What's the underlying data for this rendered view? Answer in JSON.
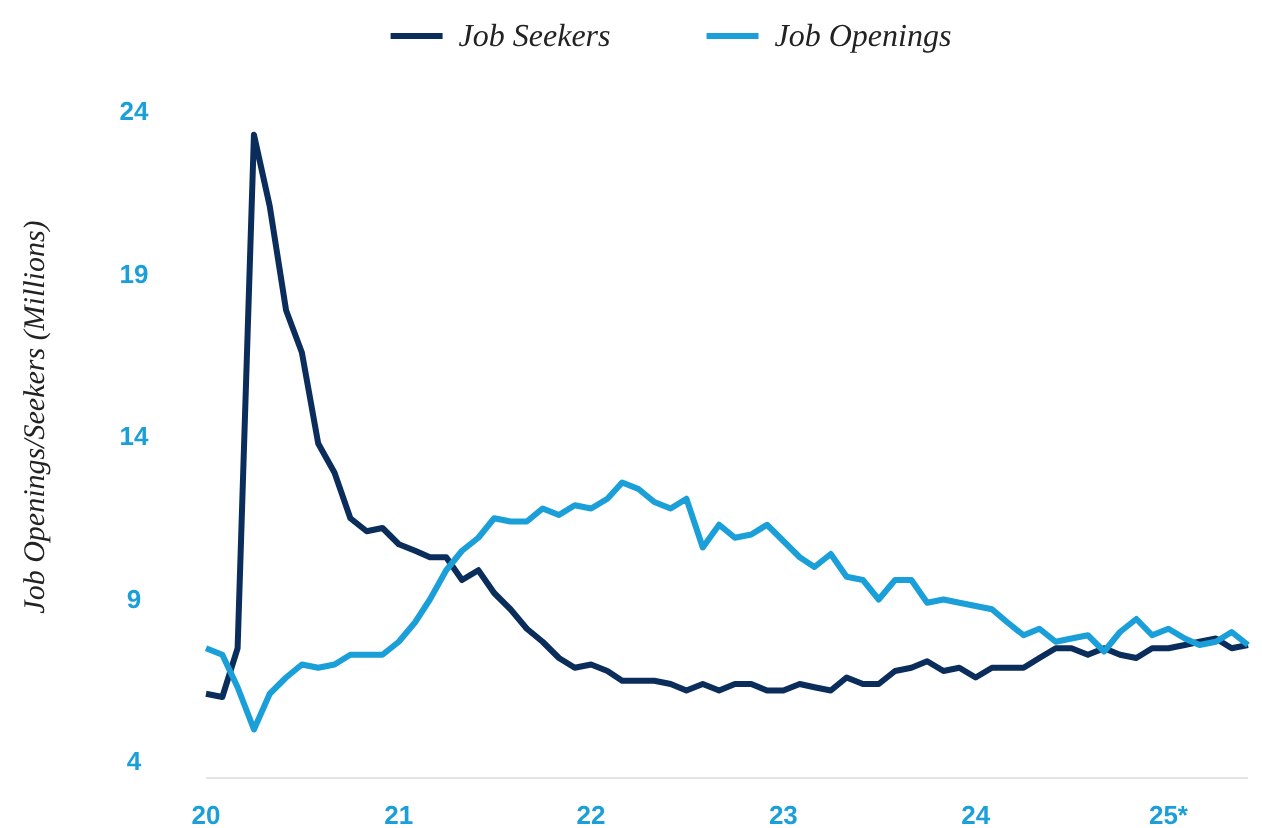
{
  "chart_data": {
    "type": "line",
    "ylabel": "Job Openings/Seekers (Millions)",
    "x": [
      "2020-01",
      "2020-02",
      "2020-03",
      "2020-04",
      "2020-05",
      "2020-06",
      "2020-07",
      "2020-08",
      "2020-09",
      "2020-10",
      "2020-11",
      "2020-12",
      "2021-01",
      "2021-02",
      "2021-03",
      "2021-04",
      "2021-05",
      "2021-06",
      "2021-07",
      "2021-08",
      "2021-09",
      "2021-10",
      "2021-11",
      "2021-12",
      "2022-01",
      "2022-02",
      "2022-03",
      "2022-04",
      "2022-05",
      "2022-06",
      "2022-07",
      "2022-08",
      "2022-09",
      "2022-10",
      "2022-11",
      "2022-12",
      "2023-01",
      "2023-02",
      "2023-03",
      "2023-04",
      "2023-05",
      "2023-06",
      "2023-07",
      "2023-08",
      "2023-09",
      "2023-10",
      "2023-11",
      "2023-12",
      "2024-01",
      "2024-02",
      "2024-03",
      "2024-04",
      "2024-05",
      "2024-06",
      "2024-07",
      "2024-08",
      "2024-09",
      "2024-10",
      "2024-11",
      "2024-12",
      "2025-01",
      "2025-02",
      "2025-03",
      "2025-04",
      "2025-05",
      "2025-06"
    ],
    "series": [
      {
        "name": "Job Seekers",
        "color": "#0b2d5b",
        "values": [
          6.1,
          6.0,
          7.5,
          23.3,
          21.1,
          17.9,
          16.6,
          13.8,
          12.9,
          11.5,
          11.1,
          11.2,
          10.7,
          10.5,
          10.3,
          10.3,
          9.6,
          9.9,
          9.2,
          8.7,
          8.1,
          7.7,
          7.2,
          6.9,
          7.0,
          6.8,
          6.5,
          6.5,
          6.5,
          6.4,
          6.2,
          6.4,
          6.2,
          6.4,
          6.4,
          6.2,
          6.2,
          6.4,
          6.3,
          6.2,
          6.6,
          6.4,
          6.4,
          6.8,
          6.9,
          7.1,
          6.8,
          6.9,
          6.6,
          6.9,
          6.9,
          6.9,
          7.2,
          7.5,
          7.5,
          7.3,
          7.5,
          7.3,
          7.2,
          7.5,
          7.5,
          7.6,
          7.7,
          7.8,
          7.5,
          7.6
        ]
      },
      {
        "name": "Job Openings",
        "color": "#1a9fd9",
        "values": [
          7.5,
          7.3,
          6.3,
          5.0,
          6.1,
          6.6,
          7.0,
          6.9,
          7.0,
          7.3,
          7.3,
          7.3,
          7.7,
          8.3,
          9.0,
          9.9,
          10.5,
          10.9,
          11.5,
          11.4,
          11.4,
          11.8,
          11.6,
          11.9,
          11.8,
          12.1,
          12.6,
          12.4,
          12.0,
          11.8,
          12.1,
          10.6,
          11.3,
          10.9,
          11.0,
          11.3,
          10.8,
          10.3,
          10.0,
          10.4,
          9.7,
          9.6,
          9.0,
          9.6,
          9.6,
          8.9,
          9.0,
          8.9,
          8.8,
          8.7,
          8.3,
          7.9,
          8.1,
          7.7,
          7.8,
          7.9,
          7.4,
          8.0,
          8.4,
          7.9,
          8.1,
          7.8,
          7.6,
          7.7,
          8.0,
          7.6
        ]
      }
    ],
    "xlim": [
      "2020-01",
      "2025-06"
    ],
    "xticks": [
      {
        "value": "2020-01",
        "label": "20"
      },
      {
        "value": "2021-01",
        "label": "21"
      },
      {
        "value": "2022-01",
        "label": "22"
      },
      {
        "value": "2023-01",
        "label": "23"
      },
      {
        "value": "2024-01",
        "label": "24"
      },
      {
        "value": "2025-01",
        "label": "25*"
      }
    ],
    "ylim": [
      4,
      24
    ],
    "yticks": [
      4,
      9,
      14,
      19,
      24
    ],
    "legend": "top",
    "grid": false,
    "marker": "none",
    "line_style": "solid"
  }
}
